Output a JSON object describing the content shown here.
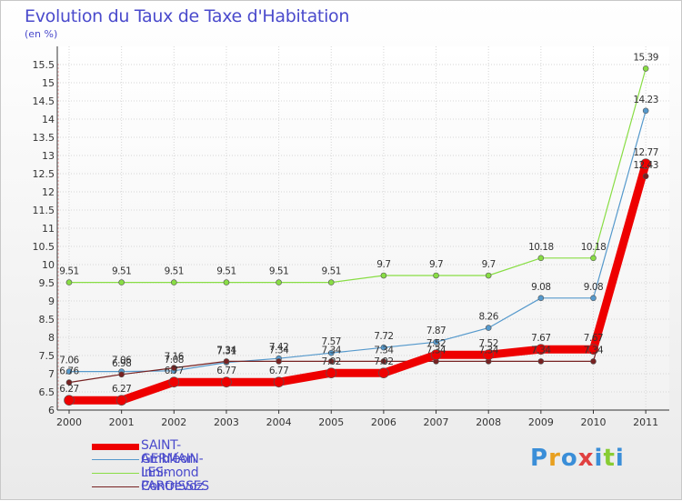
{
  "chart_data": {
    "type": "line",
    "title": "Evolution du Taux de Taxe d'Habitation",
    "unit_label": "(en %)",
    "xlabel": "",
    "ylabel": "",
    "categories": [
      "2000",
      "2001",
      "2002",
      "2003",
      "2004",
      "2005",
      "2006",
      "2007",
      "2008",
      "2009",
      "2010",
      "2011"
    ],
    "ylim": [
      6,
      15.5
    ],
    "yticks": [
      "6",
      "6.5",
      "7",
      "7.5",
      "8",
      "8.5",
      "9",
      "9.5",
      "10",
      "10.5",
      "11",
      "11.5",
      "12",
      "12.5",
      "13",
      "13.5",
      "14",
      "14.5",
      "15",
      "15.5"
    ],
    "series": [
      {
        "name": "Innimond",
        "color": "#88dd44",
        "values": [
          9.51,
          9.51,
          9.51,
          9.51,
          9.51,
          9.51,
          9.7,
          9.7,
          9.7,
          10.18,
          10.18,
          15.39
        ],
        "labels": [
          "9.51",
          "9.51",
          "9.51",
          "9.51",
          "9.51",
          "9.51",
          "9.7",
          "9.7",
          "9.7",
          "10.18",
          "10.18",
          "15.39"
        ]
      },
      {
        "name": "Ambléon",
        "color": "#5599cc",
        "values": [
          7.06,
          7.06,
          7.08,
          7.31,
          7.42,
          7.57,
          7.72,
          7.87,
          8.26,
          9.08,
          9.08,
          14.23
        ],
        "labels": [
          "7.06",
          "7.06",
          "7.08",
          "7.31",
          "7.42",
          "7.57",
          "7.72",
          "7.87",
          "8.26",
          "9.08",
          "9.08",
          "14.23"
        ]
      },
      {
        "name": "Contrevoz",
        "color": "#772222",
        "values": [
          6.76,
          6.98,
          7.16,
          7.34,
          7.34,
          7.34,
          7.34,
          7.34,
          7.34,
          7.34,
          7.34,
          12.43
        ],
        "labels": [
          "6.76",
          "6.98",
          "7.16",
          "7.34",
          "7.34",
          "7.34",
          "7.34",
          "7.34",
          "7.34",
          "7.34",
          "7.34",
          "12.43"
        ]
      },
      {
        "name": "SAINT-GERMAIN-LES-PAROISSES",
        "color": "#ee0000",
        "values": [
          6.27,
          6.27,
          6.77,
          6.77,
          6.77,
          7.02,
          7.02,
          7.52,
          7.52,
          7.67,
          7.67,
          12.77
        ],
        "labels": [
          "6.27",
          "6.27",
          "6.77",
          "6.77",
          "6.77",
          "7.02",
          "7.02",
          "7.52",
          "7.52",
          "7.67",
          "7.67",
          "12.77"
        ]
      }
    ],
    "legend_position": "bottom-left"
  },
  "legend": [
    {
      "label": "SAINT-GERMAIN-LES-PAROISSES",
      "color": "#ee0000",
      "style": "thick"
    },
    {
      "label": "Ambléon",
      "color": "#5599cc",
      "style": "thin"
    },
    {
      "label": "Innimond",
      "color": "#88dd44",
      "style": "thin"
    },
    {
      "label": "Contrevoz",
      "color": "#772222",
      "style": "thin"
    }
  ],
  "logo": {
    "text": "Proxiti"
  }
}
